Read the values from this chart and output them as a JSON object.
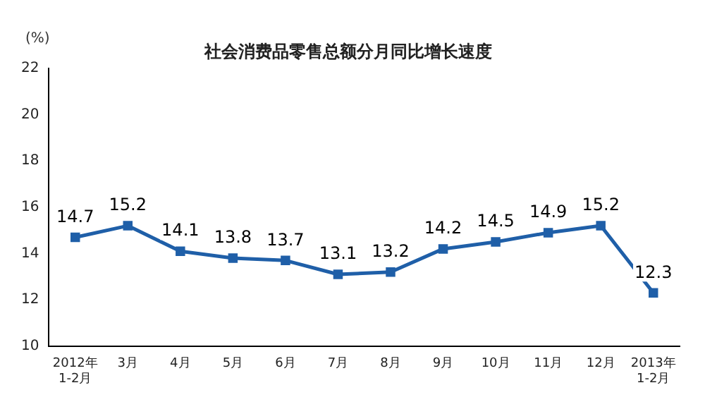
{
  "chart_data": {
    "type": "line",
    "title": "社会消费品零售总额分月同比增长速度",
    "ylabel": "(%)",
    "categories": [
      "2012年\n1-2月",
      "3月",
      "4月",
      "5月",
      "6月",
      "7月",
      "8月",
      "9月",
      "10月",
      "11月",
      "12月",
      "2013年\n1-2月"
    ],
    "series": [
      {
        "color": "#1f5fa8",
        "values": [
          14.7,
          15.2,
          14.1,
          13.8,
          13.7,
          13.1,
          13.2,
          14.2,
          14.5,
          14.9,
          15.2,
          12.3
        ]
      }
    ],
    "ylim": [
      10,
      22
    ],
    "yticks": [
      10,
      12,
      14,
      16,
      18,
      20,
      22
    ],
    "grid": false,
    "legend": false,
    "marker": "square",
    "line_style": "solid",
    "data_labels": true
  }
}
